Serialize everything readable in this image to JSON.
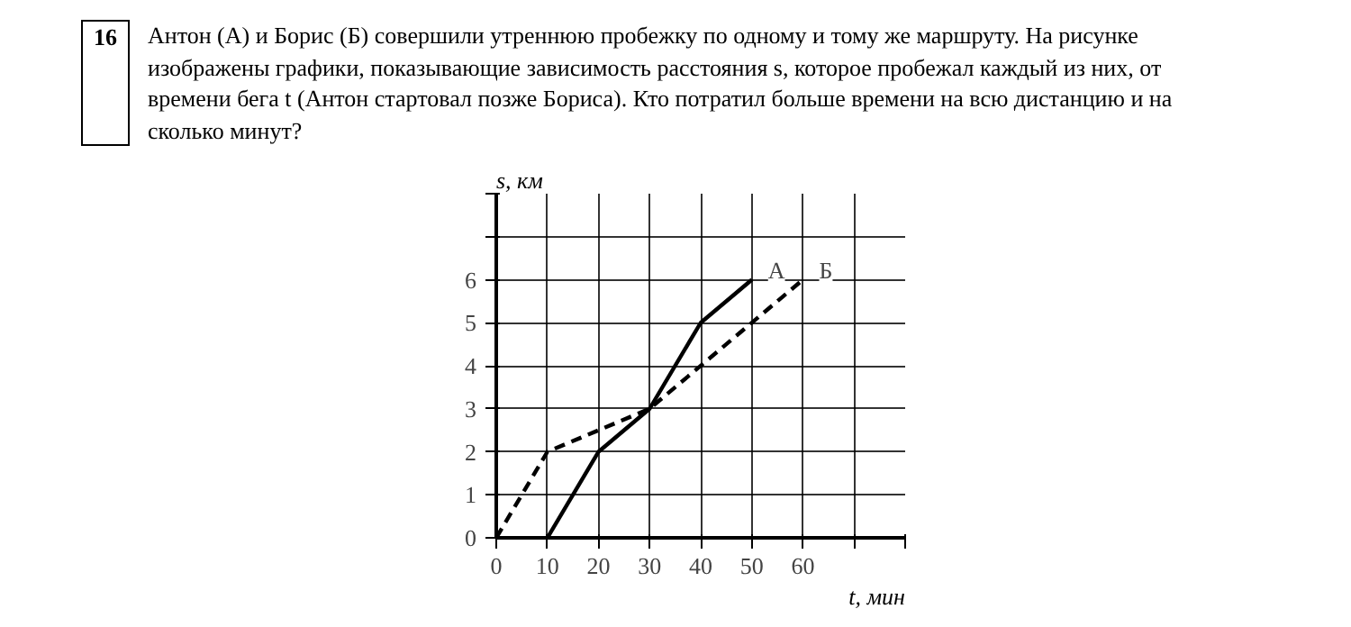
{
  "chart_data": {
    "type": "line",
    "title": "Антон (А) и Борис (Б) совершили утреннюю пробежку по одному и тому же маршруту. На рисунке изображены графики, показывающие зависимость расстояния s, которое пробежал каждый из них, от времени бега t (Антон стартовал позже Бориса). Кто потратил больше времени на всю дистанцию и на сколько минут?",
    "annotations": [
      "16"
    ],
    "xlabel": "t, мин",
    "ylabel": "s, км",
    "xlim": [
      0,
      80
    ],
    "ylim": [
      0,
      8
    ],
    "xticks": [
      0,
      10,
      20,
      30,
      40,
      50,
      60,
      {
        "value": 70,
        "label": null
      },
      {
        "value": 80,
        "label": null
      }
    ],
    "yticks": [
      0,
      1,
      2,
      3,
      4,
      5,
      6,
      {
        "value": 7,
        "label": null
      },
      {
        "value": 8,
        "label": null
      }
    ],
    "grid": true,
    "series": [
      {
        "name": "А",
        "color": "#000000",
        "line_style": "solid",
        "x": [
          10,
          20,
          30,
          40,
          50
        ],
        "values": [
          0,
          2,
          3,
          5,
          6
        ]
      },
      {
        "name": "Б",
        "color": "#000000",
        "line_style": "dashed",
        "x": [
          0,
          10,
          30,
          60
        ],
        "values": [
          0,
          2,
          3,
          6
        ]
      }
    ]
  }
}
